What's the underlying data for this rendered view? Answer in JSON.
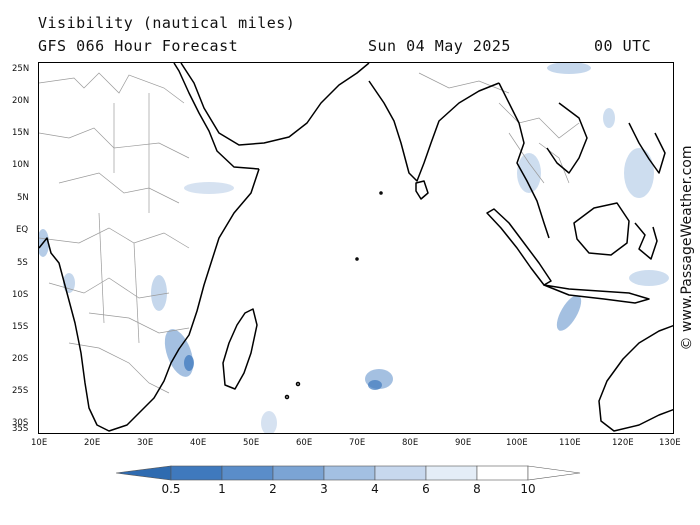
{
  "header": {
    "title": "Visibility (nautical miles)",
    "subtitle": "GFS 066 Hour Forecast",
    "date": "Sun 04 May 2025",
    "time": "00 UTC"
  },
  "copyright": "© www.PassageWeather.com",
  "map": {
    "lat_labels": [
      "25N",
      "20N",
      "15N",
      "10N",
      "5N",
      "EQ",
      "5S",
      "10S",
      "15S",
      "20S",
      "25S",
      "30S",
      "35S"
    ],
    "lon_labels": [
      "10E",
      "20E",
      "30E",
      "40E",
      "50E",
      "60E",
      "70E",
      "80E",
      "90E",
      "100E",
      "110E",
      "120E",
      "130E"
    ],
    "lat_range": [
      -35.5,
      25.5
    ],
    "lon_range": [
      10,
      130
    ],
    "colors": {
      "land_outline": "#000000",
      "border": "#9a9a9a",
      "low_vis": "#4a82c4"
    }
  },
  "colorbar": {
    "labels": [
      "0.5",
      "1",
      "2",
      "3",
      "4",
      "6",
      "8",
      "10"
    ],
    "colors": [
      "#2f6bb0",
      "#3f79bd",
      "#5a8dc9",
      "#7ba4d4",
      "#a3c0e2",
      "#c7d8ee",
      "#e4edf7",
      "#ffffff"
    ],
    "unit": "nautical miles"
  }
}
